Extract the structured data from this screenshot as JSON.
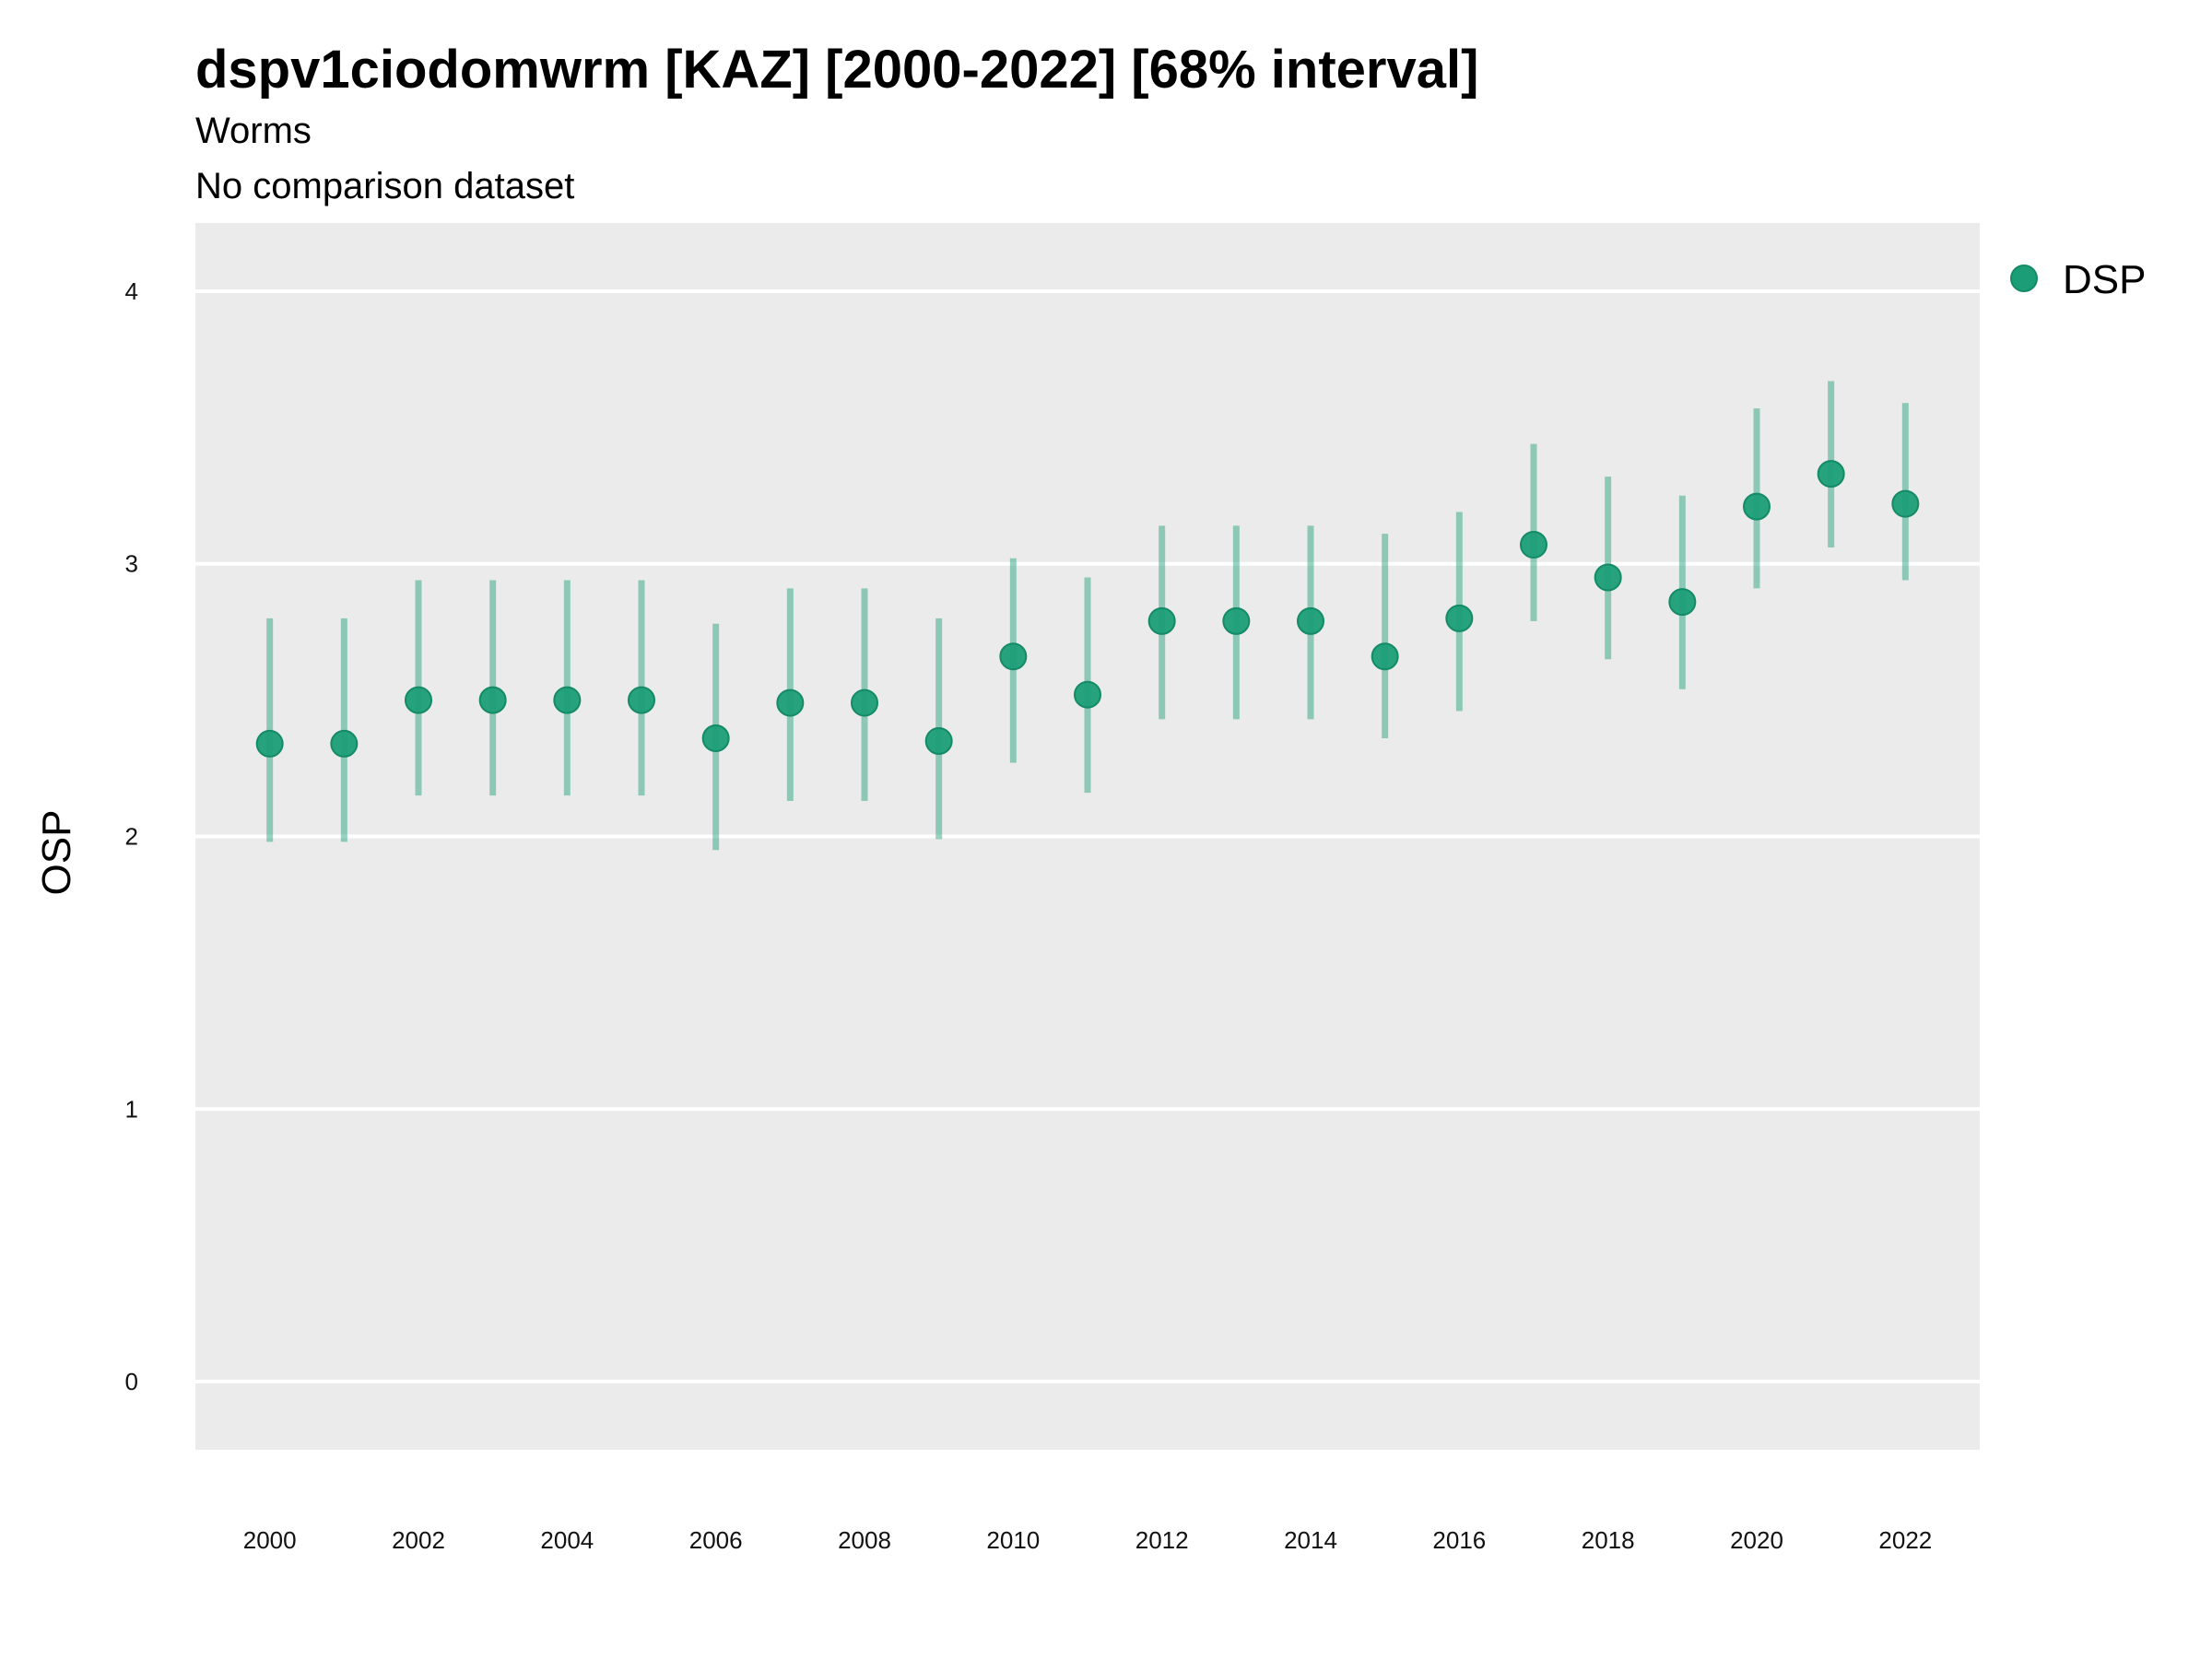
{
  "chart_data": {
    "type": "scatter",
    "title": "dspv1ciodomwrm [KAZ] [2000-2022] [68% interval]",
    "subtitle": "Worms",
    "caption": "No comparison dataset",
    "xlabel": "",
    "ylabel": "OSP",
    "xlim": [
      1999,
      2023
    ],
    "ylim": [
      -0.25,
      4.25
    ],
    "yticks": [
      "0",
      "1",
      "2",
      "3",
      "4"
    ],
    "xticks": [
      "2000",
      "2002",
      "2004",
      "2006",
      "2008",
      "2010",
      "2012",
      "2014",
      "2016",
      "2018",
      "2020",
      "2022"
    ],
    "grid": true,
    "legend_position": "right",
    "series": [
      {
        "name": "DSP",
        "color": "#1b9e77",
        "x": [
          2000,
          2001,
          2002,
          2003,
          2004,
          2005,
          2006,
          2007,
          2008,
          2009,
          2010,
          2011,
          2012,
          2013,
          2014,
          2015,
          2016,
          2017,
          2018,
          2019,
          2020,
          2021,
          2022
        ],
        "y": [
          2.34,
          2.34,
          2.5,
          2.5,
          2.5,
          2.5,
          2.36,
          2.49,
          2.49,
          2.35,
          2.66,
          2.52,
          2.79,
          2.79,
          2.79,
          2.66,
          2.8,
          3.07,
          2.95,
          2.86,
          3.21,
          3.33,
          3.22
        ],
        "lower": [
          1.98,
          1.98,
          2.15,
          2.15,
          2.15,
          2.15,
          1.95,
          2.13,
          2.13,
          1.99,
          2.27,
          2.16,
          2.43,
          2.43,
          2.43,
          2.36,
          2.46,
          2.79,
          2.65,
          2.54,
          2.91,
          3.06,
          2.94
        ],
        "upper": [
          2.8,
          2.8,
          2.94,
          2.94,
          2.94,
          2.94,
          2.78,
          2.91,
          2.91,
          2.8,
          3.02,
          2.95,
          3.14,
          3.14,
          3.14,
          3.11,
          3.19,
          3.44,
          3.32,
          3.25,
          3.57,
          3.67,
          3.59
        ]
      }
    ]
  }
}
